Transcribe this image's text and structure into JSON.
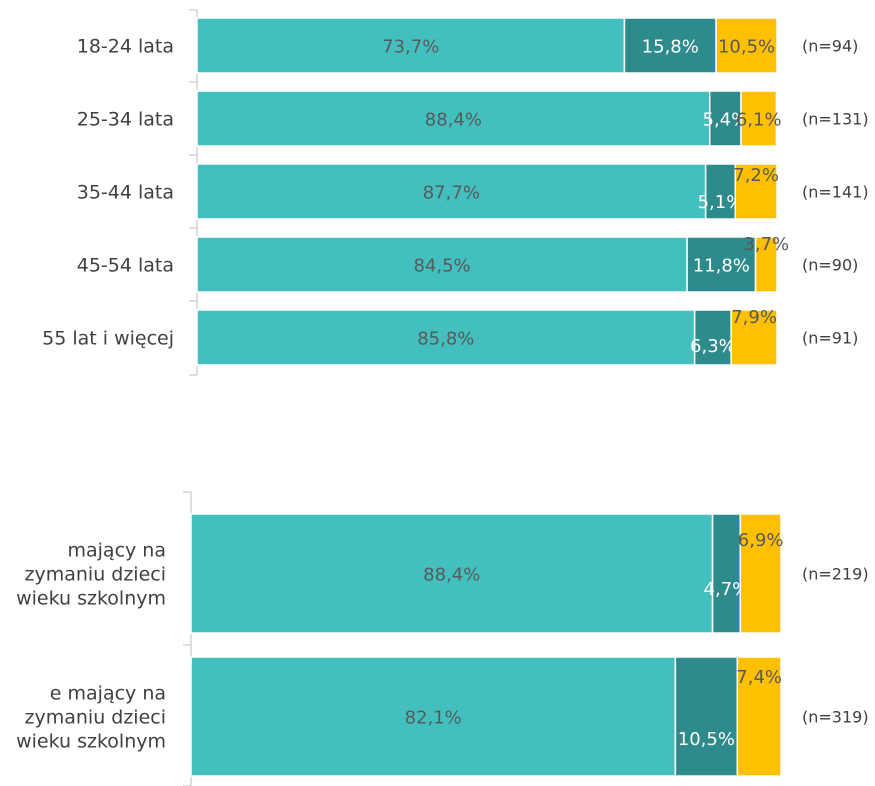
{
  "chart_data": [
    {
      "type": "bar",
      "orientation": "horizontal",
      "stacked": true,
      "categories": [
        "18-24 lata",
        "25-34 lata",
        "35-44 lata",
        "45-54 lata",
        "55 lat i więcej"
      ],
      "series": [
        {
          "values": [
            73.7,
            88.4,
            87.7,
            84.5,
            85.8
          ],
          "labels": [
            "73,7%",
            "88,4%",
            "87,7%",
            "84,5%",
            "85,8%"
          ],
          "color": "#43BFBF"
        },
        {
          "values": [
            15.8,
            5.4,
            5.1,
            11.8,
            6.3
          ],
          "labels": [
            "15,8%",
            "5,4%",
            "5,1%",
            "11,8%",
            "6,3%"
          ],
          "color": "#2E8B8B"
        },
        {
          "values": [
            10.5,
            6.1,
            7.2,
            3.7,
            7.9
          ],
          "labels": [
            "10,5%",
            "6,1%",
            "7,2%",
            "3,7%",
            "7,9%"
          ],
          "color": "#FFC000"
        }
      ],
      "n_labels": [
        "(n=94)",
        "(n=131)",
        "(n=141)",
        "(n=90)",
        "(n=91)"
      ],
      "xlim": [
        0,
        100
      ]
    },
    {
      "type": "bar",
      "orientation": "horizontal",
      "stacked": true,
      "categories": [
        [
          "mający na",
          "zymaniu dzieci",
          "wieku szkolnym"
        ],
        [
          "e mający na",
          "zymaniu dzieci",
          "wieku szkolnym"
        ]
      ],
      "series": [
        {
          "values": [
            88.4,
            82.1
          ],
          "labels": [
            "88,4%",
            "82,1%"
          ],
          "color": "#43BFBF"
        },
        {
          "values": [
            4.7,
            10.5
          ],
          "labels": [
            "4,7%",
            "10,5%"
          ],
          "color": "#2E8B8B"
        },
        {
          "values": [
            6.9,
            7.4
          ],
          "labels": [
            "6,9%",
            "7,4%"
          ],
          "color": "#FFC000"
        }
      ],
      "n_labels": [
        "(n=219)",
        "(n=319)"
      ],
      "xlim": [
        0,
        100
      ]
    }
  ]
}
